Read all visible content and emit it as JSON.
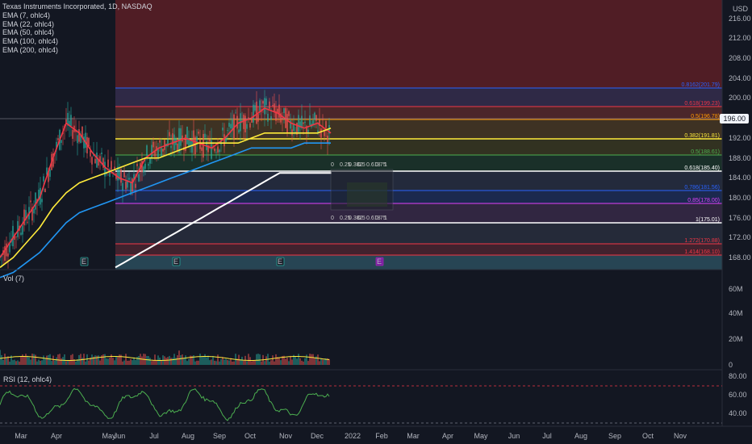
{
  "symbol": {
    "title": "Texas Instruments Incorporated, 1D, NASDAQ",
    "indicators": [
      "EMA (7, ohlc4)",
      "EMA (22, ohlc4)",
      "EMA (50, ohlc4)",
      "EMA (100, ohlc4)",
      "EMA (200, ohlc4)"
    ]
  },
  "price_axis": {
    "currency": "USD",
    "ticks": [
      "216.00",
      "212.00",
      "208.00",
      "204.00",
      "200.00",
      "196.00",
      "192.00",
      "188.00",
      "184.00",
      "180.00",
      "176.00",
      "172.00",
      "168.00"
    ],
    "last_price": "196.00"
  },
  "volume_pane": {
    "label": "Vol (7)",
    "ticks": [
      "60M",
      "40M",
      "20M",
      "0"
    ]
  },
  "rsi_pane": {
    "label": "RSI (12, ohlc4)",
    "ticks": [
      "80.00",
      "60.00",
      "40.00"
    ]
  },
  "time_axis": [
    "Mar",
    "Apr",
    "May",
    "Jun",
    "Jul",
    "Aug",
    "Sep",
    "Oct",
    "Nov",
    "Dec",
    "2022",
    "Feb",
    "Mar",
    "Apr",
    "May",
    "Jun",
    "Jul",
    "Aug",
    "Sep",
    "Oct",
    "Nov"
  ],
  "fib_levels": [
    {
      "label": "0.8162(201.79)",
      "color": "#2962ff"
    },
    {
      "label": "0.618(199.23)",
      "color": "#f23645"
    },
    {
      "label": "0.5(196.78)",
      "color": "#ff9800"
    },
    {
      "label": "0.382(191.81)",
      "color": "#ffeb3b"
    },
    {
      "label": "0.5(188.61)",
      "color": "#4caf50"
    },
    {
      "label": "0.618(185.40)",
      "color": "#ffffff"
    },
    {
      "label": "0.786(181.56)",
      "color": "#2962ff"
    },
    {
      "label": "0.85(178.00)",
      "color": "#e040fb"
    },
    {
      "label": "1(175.01)",
      "color": "#ffffff"
    },
    {
      "label": "1.272(170.88)",
      "color": "#f23645"
    },
    {
      "label": "1.414(168.10)",
      "color": "#f23645"
    }
  ],
  "fan_labels": [
    "0",
    "0.25",
    "0.382",
    "0.5",
    "0.618",
    "0.75",
    "1"
  ],
  "earnings_markers": [
    "E",
    "E",
    "E",
    "E"
  ],
  "colors": {
    "background": "#131722",
    "ema7": "#f23645",
    "ema22": "#ff5252",
    "ema50": "#ffeb3b",
    "ema100": "#2196f3",
    "ema200": "#ffffff",
    "up": "#26a69a",
    "down": "#ef5350",
    "rsi": "#4caf50"
  },
  "chart_data": {
    "type": "line",
    "title": "Texas Instruments Incorporated, 1D, NASDAQ",
    "y_range": [
      166,
      218
    ],
    "series": [
      {
        "name": "EMA (7, ohlc4)",
        "values": [
          168,
          172,
          176,
          180,
          188,
          195,
          193,
          189,
          186,
          184,
          183,
          188,
          190,
          191,
          192,
          191,
          190,
          192,
          195,
          196,
          198,
          197,
          195,
          194,
          195,
          193
        ]
      },
      {
        "name": "EMA (50, ohlc4)",
        "values": [
          166,
          168,
          171,
          174,
          178,
          181,
          183,
          184,
          185,
          186,
          187,
          188,
          188,
          189,
          190,
          191,
          191,
          191,
          191,
          192,
          193,
          193,
          193,
          193,
          193,
          194
        ]
      },
      {
        "name": "EMA (100, ohlc4)",
        "values": [
          164,
          165,
          167,
          169,
          172,
          175,
          177,
          178,
          179,
          180,
          181,
          182,
          183,
          184,
          185,
          186,
          187,
          188,
          189,
          190,
          190,
          190,
          190,
          191,
          191,
          191
        ]
      },
      {
        "name": "EMA (200, ohlc4)",
        "values": [
          166,
          167,
          168,
          169,
          170,
          171,
          172,
          173,
          174,
          175,
          176,
          177,
          178,
          179,
          180,
          181,
          182,
          183,
          184,
          185,
          185,
          185,
          185,
          185,
          185,
          185
        ]
      }
    ]
  }
}
